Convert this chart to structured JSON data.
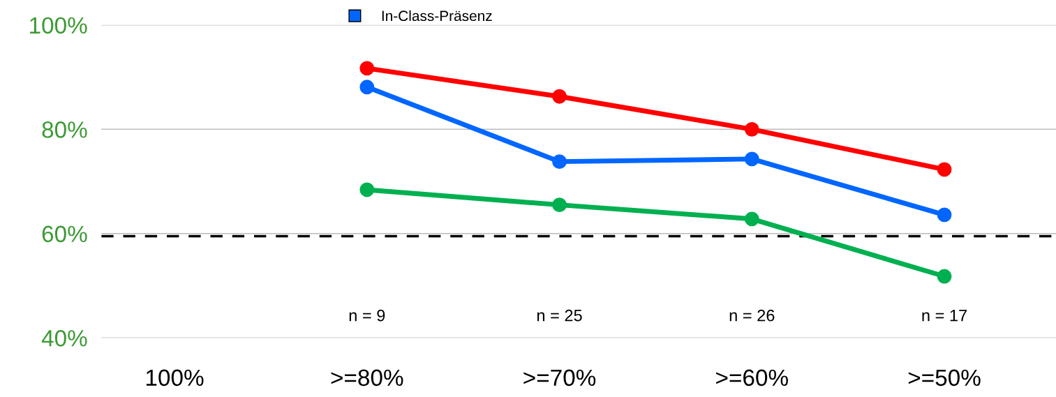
{
  "chart_data": {
    "type": "line",
    "categories": [
      "100%",
      ">=80%",
      ">=70%",
      ">=60%",
      ">=50%"
    ],
    "series": [
      {
        "color": "#ff0000",
        "values": [
          null,
          91.7,
          86.3,
          80.0,
          72.3
        ]
      },
      {
        "name": "In-Class-Präsenz",
        "color": "#0066ff",
        "values": [
          null,
          88.1,
          73.8,
          74.3,
          63.6
        ]
      },
      {
        "color": "#00b050",
        "values": [
          null,
          68.4,
          65.5,
          62.8,
          51.8
        ]
      }
    ],
    "ylim": [
      40,
      100
    ],
    "yticks": [
      {
        "value": 40,
        "label": "40%"
      },
      {
        "value": 60,
        "label": "60%"
      },
      {
        "value": 80,
        "label": "80%"
      },
      {
        "value": 100,
        "label": "100%"
      }
    ],
    "ref_lines": [
      {
        "axis": "y",
        "value": 59.5,
        "color": "#000000",
        "line_style": "dashed"
      }
    ],
    "annotations": [
      "n = 9",
      "n = 25",
      "n = 26",
      "n = 17"
    ],
    "grid": "y",
    "legend": "top",
    "marker": "circle",
    "line_style": "solid"
  }
}
